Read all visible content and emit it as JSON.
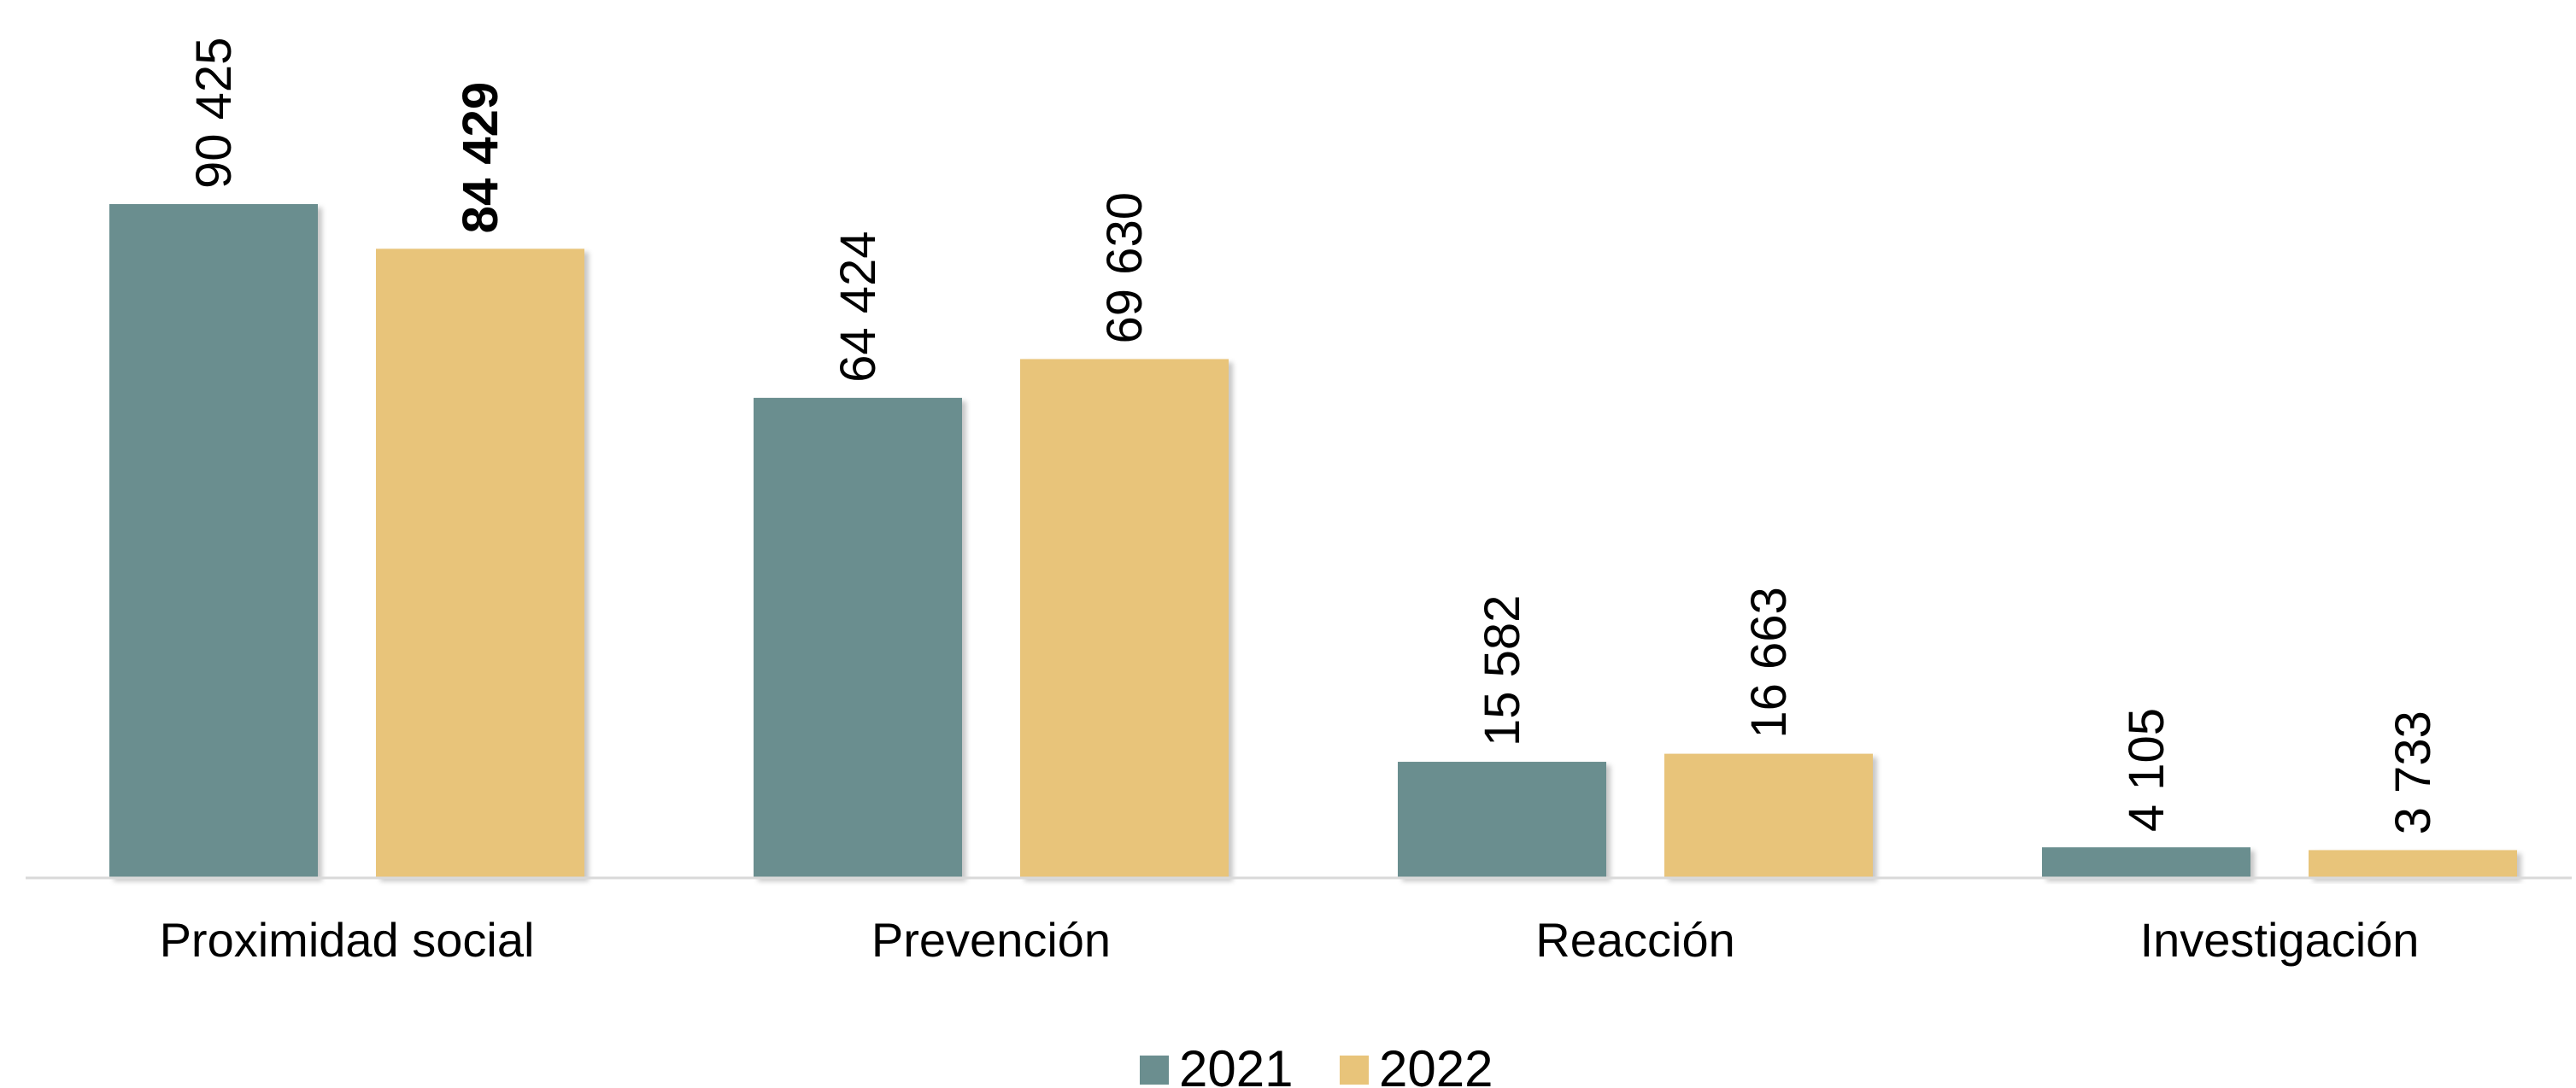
{
  "chart_data": {
    "type": "bar",
    "title": "",
    "xlabel": "",
    "ylabel": "",
    "categories": [
      "Proximidad social",
      "Prevención",
      "Reacción",
      "Investigación"
    ],
    "series": [
      {
        "name": "2021",
        "color": "#6b8e8f",
        "values": [
          90425,
          64424,
          15582,
          4105
        ],
        "value_labels": [
          "90 425",
          "64 424",
          "15 582",
          "4 105"
        ]
      },
      {
        "name": "2022",
        "color": "#e8c47a",
        "values": [
          84429,
          69630,
          16663,
          3733
        ],
        "value_labels": [
          "84 429",
          "69 630",
          "16 663",
          "3 733"
        ]
      }
    ],
    "bold_labels": [
      [
        false,
        false,
        false,
        false
      ],
      [
        true,
        false,
        false,
        false
      ]
    ],
    "ylim": [
      0,
      100000
    ],
    "grid": false,
    "legend": "bottom"
  }
}
